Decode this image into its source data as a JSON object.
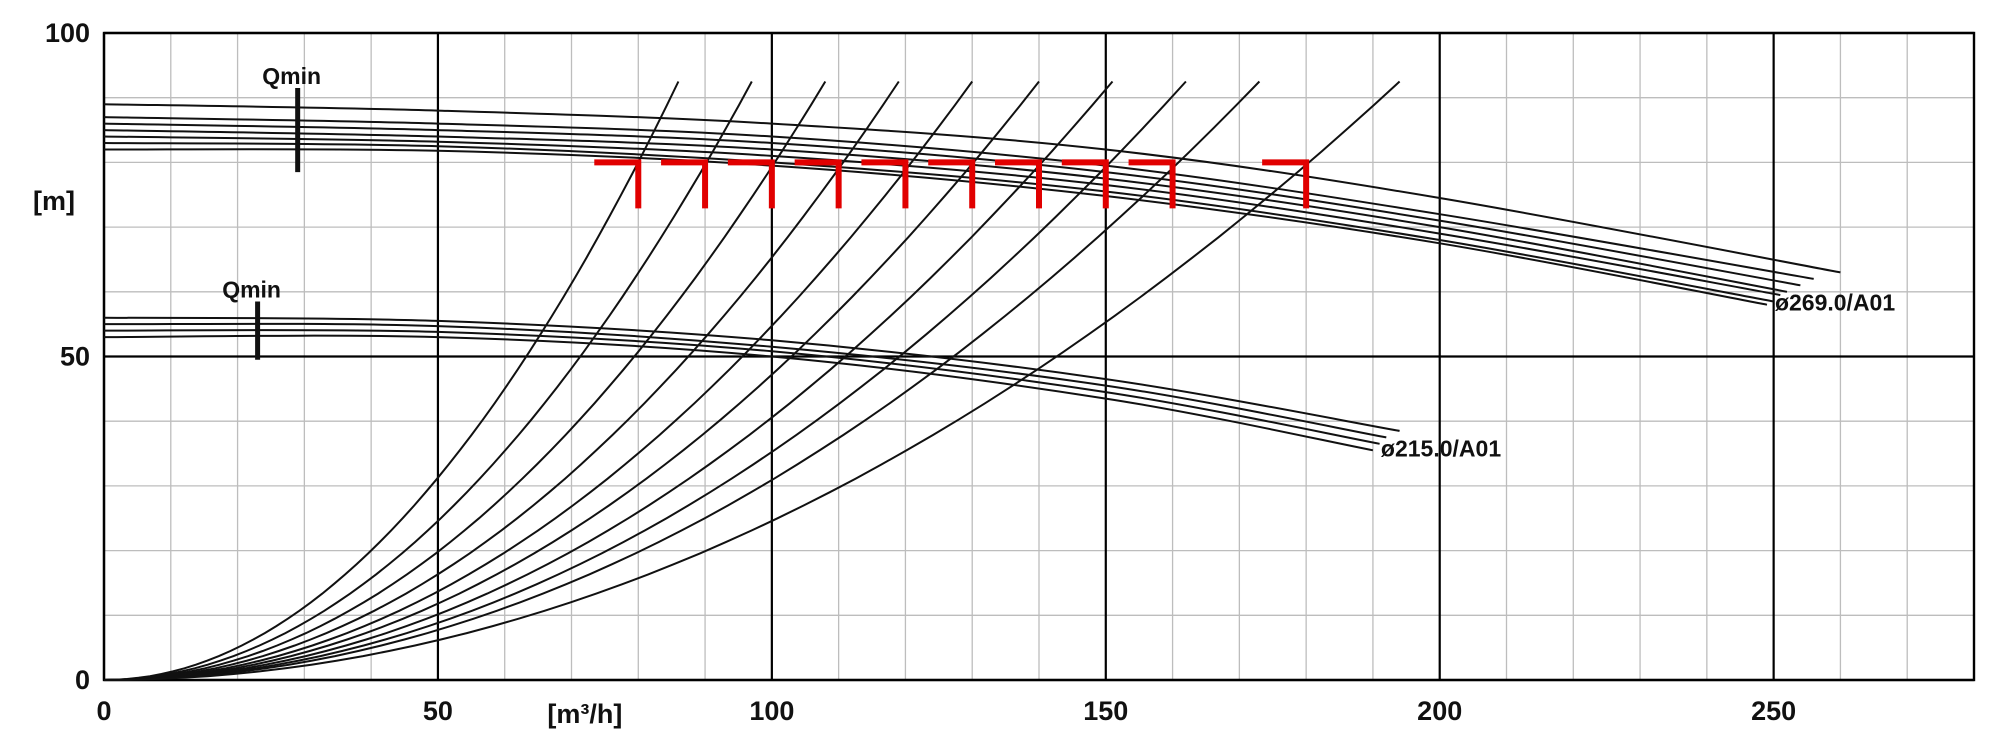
{
  "chart_data": {
    "type": "line",
    "title": "",
    "xlabel": "[m³/h]",
    "ylabel": "[m]",
    "xlim": [
      0,
      280
    ],
    "ylim": [
      0,
      100
    ],
    "x_ticks": [
      "0",
      "50",
      "100",
      "150",
      "200",
      "250"
    ],
    "y_ticks": [
      "0",
      "50",
      "100"
    ],
    "grid": true,
    "x_minor_step": 10,
    "y_minor_step": 10,
    "pump_curve_groups": [
      {
        "name": "ø269.0/A01",
        "qmin_label": "Qmin",
        "qmin_flow": 29,
        "curves": [
          {
            "x": [
              0,
              50,
              100,
              150,
              200,
              260
            ],
            "y": [
              89,
              88,
              86,
              82,
              74.5,
              63
            ]
          },
          {
            "x": [
              0,
              50,
              100,
              150,
              200,
              256
            ],
            "y": [
              87,
              86,
              84,
              79.5,
              72,
              62
            ]
          },
          {
            "x": [
              0,
              50,
              100,
              150,
              200,
              254
            ],
            "y": [
              86,
              85,
              83,
              78.5,
              71,
              61
            ]
          },
          {
            "x": [
              0,
              50,
              100,
              150,
              200,
              252
            ],
            "y": [
              85,
              84,
              82,
              77.5,
              70,
              60
            ]
          },
          {
            "x": [
              0,
              50,
              100,
              150,
              200,
              251
            ],
            "y": [
              84,
              83.2,
              81,
              76.5,
              69,
              59.5
            ]
          },
          {
            "x": [
              0,
              50,
              100,
              150,
              200,
              250
            ],
            "y": [
              83,
              82.5,
              80,
              75.5,
              68,
              58.5
            ]
          },
          {
            "x": [
              0,
              50,
              100,
              150,
              200,
              249
            ],
            "y": [
              82,
              81.8,
              79.5,
              74.8,
              67.5,
              58
            ]
          }
        ]
      },
      {
        "name": "ø215.0/A01",
        "qmin_label": "Qmin",
        "qmin_flow": 23,
        "curves": [
          {
            "x": [
              0,
              50,
              100,
              150,
              194
            ],
            "y": [
              56,
              55.5,
              52.5,
              46.5,
              38.5
            ]
          },
          {
            "x": [
              0,
              50,
              100,
              150,
              192
            ],
            "y": [
              55,
              54.7,
              51.5,
              45.5,
              37.5
            ]
          },
          {
            "x": [
              0,
              50,
              100,
              150,
              191
            ],
            "y": [
              54,
              53.8,
              50.8,
              44.5,
              36.5
            ]
          },
          {
            "x": [
              0,
              50,
              100,
              150,
              190
            ],
            "y": [
              53,
              53,
              50,
              43.5,
              35.5
            ]
          }
        ]
      }
    ],
    "system_curves": [
      {
        "x_end": 86,
        "y_end": 92.5
      },
      {
        "x_end": 97,
        "y_end": 92.5
      },
      {
        "x_end": 108,
        "y_end": 92.5
      },
      {
        "x_end": 119,
        "y_end": 92.5
      },
      {
        "x_end": 130,
        "y_end": 92.5
      },
      {
        "x_end": 140,
        "y_end": 92.5
      },
      {
        "x_end": 151,
        "y_end": 92.5
      },
      {
        "x_end": 162,
        "y_end": 92.5
      },
      {
        "x_end": 173,
        "y_end": 92.5
      },
      {
        "x_end": 194,
        "y_end": 92.5
      }
    ],
    "operating_point_markers": [
      {
        "x": 80,
        "y": 80
      },
      {
        "x": 90,
        "y": 80
      },
      {
        "x": 100,
        "y": 80
      },
      {
        "x": 110,
        "y": 80
      },
      {
        "x": 120,
        "y": 80
      },
      {
        "x": 130,
        "y": 80
      },
      {
        "x": 140,
        "y": 80
      },
      {
        "x": 150,
        "y": 80
      },
      {
        "x": 160,
        "y": 80
      },
      {
        "x": 180,
        "y": 80
      }
    ]
  },
  "colors": {
    "marker": "#e10000",
    "curve": "#111111",
    "minor_grid": "#bdbdbd",
    "major_grid": "#000000"
  }
}
